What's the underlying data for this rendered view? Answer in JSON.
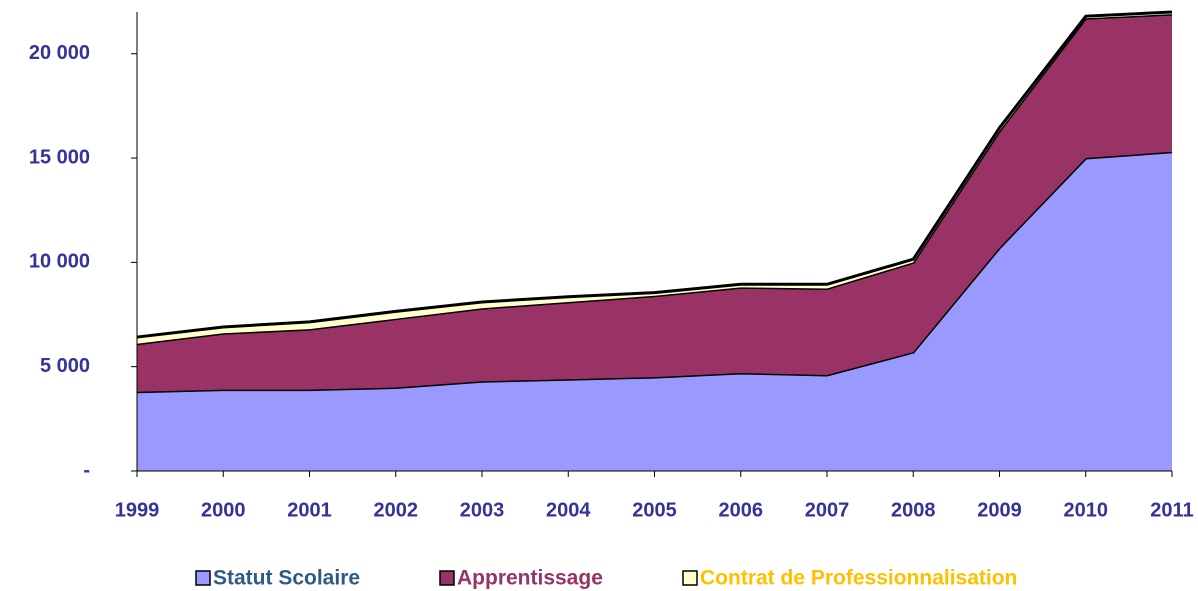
{
  "chart_data": {
    "type": "stacked_area",
    "categories": [
      "1999",
      "2000",
      "2001",
      "2002",
      "2003",
      "2004",
      "2005",
      "2006",
      "2007",
      "2008",
      "2009",
      "2010",
      "2011"
    ],
    "series": [
      {
        "name": "Statut Scolaire",
        "color": "#9999ff",
        "values": [
          3800,
          3900,
          3900,
          4000,
          4300,
          4400,
          4500,
          4700,
          4600,
          5700,
          10700,
          15000,
          15300
        ]
      },
      {
        "name": "Apprentissage",
        "color": "#993366",
        "values": [
          2300,
          2700,
          2900,
          3300,
          3500,
          3700,
          3900,
          4100,
          4150,
          4300,
          5600,
          6700,
          6600
        ]
      },
      {
        "name": "Contrat de Professionnalisation",
        "color": "#ffffcc",
        "values": [
          320,
          300,
          350,
          350,
          300,
          250,
          150,
          150,
          200,
          150,
          150,
          100,
          100
        ]
      }
    ],
    "ylim": [
      0,
      22000
    ],
    "yticks": [
      {
        "value": 0,
        "label": "-"
      },
      {
        "value": 5000,
        "label": "5 000"
      },
      {
        "value": 10000,
        "label": "10 000"
      },
      {
        "value": 15000,
        "label": "15 000"
      },
      {
        "value": 20000,
        "label": "20 000"
      }
    ],
    "legend": "bottom"
  }
}
